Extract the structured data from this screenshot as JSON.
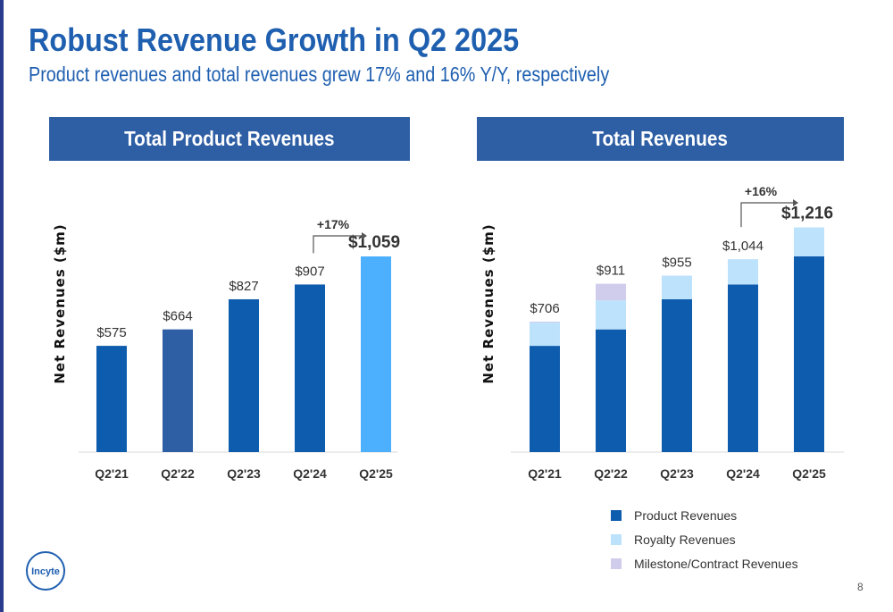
{
  "slide": {
    "title": "Robust Revenue Growth in Q2 2025",
    "subtitle": "Product revenues and total revenues grew 17% and 16% Y/Y, respectively",
    "page_number": "8",
    "logo_text": "Incyte"
  },
  "colors": {
    "product": "#0e5cad",
    "product_q22": "#2e5ea4",
    "product_highlight": "#4db0ff",
    "royalty": "#bde2fb",
    "milestone": "#cfcdeb",
    "header_bg": "#2e5ea4",
    "title": "#1f5fb0"
  },
  "chart_data": [
    {
      "type": "bar",
      "title": "Total Product Revenues",
      "ylabel": "Net Revenues ($m)",
      "categories": [
        "Q2'21",
        "Q2'22",
        "Q2'23",
        "Q2'24",
        "Q2'25"
      ],
      "values": [
        575,
        664,
        827,
        907,
        1059
      ],
      "value_labels": [
        "$575",
        "$664",
        "$827",
        "$907",
        "$1,059"
      ],
      "growth_annotation": "+17%",
      "ylim": [
        0,
        1300
      ],
      "grid": false
    },
    {
      "type": "bar",
      "stacked": true,
      "title": "Total Revenues",
      "ylabel": "Net Revenues ($m)",
      "categories": [
        "Q2'21",
        "Q2'22",
        "Q2'23",
        "Q2'24",
        "Q2'25"
      ],
      "series": [
        {
          "name": "Product Revenues",
          "values": [
            575,
            664,
            827,
            907,
            1059
          ]
        },
        {
          "name": "Royalty Revenues",
          "values": [
            126,
            157,
            128,
            137,
            157
          ]
        },
        {
          "name": "Milestone/Contract Revenues",
          "values": [
            5,
            90,
            0,
            0,
            0
          ]
        }
      ],
      "totals": [
        706,
        911,
        955,
        1044,
        1216
      ],
      "total_labels": [
        "$706",
        "$911",
        "$955",
        "$1,044",
        "$1,216"
      ],
      "growth_annotation": "+16%",
      "ylim": [
        0,
        1300
      ],
      "legend": "bottom",
      "grid": false
    }
  ]
}
